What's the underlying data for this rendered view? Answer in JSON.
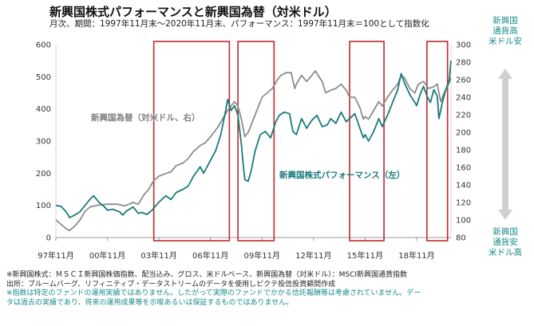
{
  "title": "新興国株式パフォーマンスと新興国為替（対米ドル）",
  "subtitle": "月次、期間：1997年11月末〜2020年11月末、パフォーマンス：1997年11月末＝100として指数化",
  "right_top_label": [
    "新興国",
    "通貨高",
    "米ドル安"
  ],
  "right_bottom_label": [
    "新興国",
    "通貨安",
    "米ドル高"
  ],
  "notes": {
    "line1": "※新興国株式：ＭＳＣＩ新興国株価指数、配当込み、グロス、米ドルベース、新興国為替（対米ドル）：MSCI新興国通貨指数",
    "line2": "出所：ブルームバーグ、リフィニティブ・データストリームのデータを使用しピクテ投信投資顧問作成",
    "line3": "※指数は特定のファンドの運用実績ではありません。したがって実際のファンドでかかる信託報酬等は考慮されていません。デー",
    "line4": "タは過去の実績であり、将来の運用成果等を示唆あるいは保証するものではありません。"
  },
  "colors": {
    "equity": "#1a7a7a",
    "fx": "#8c8c8c",
    "highlight": "#c0282d",
    "arrow": "#d0d0d0",
    "accent": "#1a8a8a"
  },
  "chart_data": {
    "type": "line",
    "x_tick_labels": [
      "97年11月",
      "00年11月",
      "03年11月",
      "06年11月",
      "09年11月",
      "12年11月",
      "15年11月",
      "18年11月"
    ],
    "x_range": [
      1997.9,
      2020.9
    ],
    "y_left": {
      "ylim": [
        0,
        600
      ],
      "ticks": [
        0,
        100,
        200,
        300,
        400,
        500,
        600
      ]
    },
    "y_right": {
      "ylim": [
        80,
        300
      ],
      "ticks": [
        80,
        100,
        120,
        140,
        160,
        180,
        200,
        220,
        240,
        260,
        280,
        300
      ]
    },
    "highlight_periods": [
      [
        2003.6,
        2008.0
      ],
      [
        2008.5,
        2010.6
      ],
      [
        2015.0,
        2017.0
      ],
      [
        2019.5,
        2020.7
      ]
    ],
    "series": [
      {
        "name": "新興国株式パフォーマンス（左）",
        "axis": "left",
        "points": [
          [
            1997.9,
            100
          ],
          [
            1998.2,
            97
          ],
          [
            1998.5,
            80
          ],
          [
            1998.7,
            62
          ],
          [
            1999.0,
            70
          ],
          [
            1999.3,
            80
          ],
          [
            1999.6,
            100
          ],
          [
            1999.9,
            120
          ],
          [
            2000.1,
            130
          ],
          [
            2000.4,
            110
          ],
          [
            2000.7,
            97
          ],
          [
            2000.9,
            85
          ],
          [
            2001.2,
            88
          ],
          [
            2001.6,
            80
          ],
          [
            2001.8,
            70
          ],
          [
            2002.0,
            82
          ],
          [
            2002.4,
            95
          ],
          [
            2002.7,
            75
          ],
          [
            2002.9,
            78
          ],
          [
            2003.2,
            72
          ],
          [
            2003.5,
            85
          ],
          [
            2003.9,
            110
          ],
          [
            2004.3,
            130
          ],
          [
            2004.6,
            118
          ],
          [
            2004.9,
            140
          ],
          [
            2005.3,
            150
          ],
          [
            2005.6,
            160
          ],
          [
            2005.9,
            190
          ],
          [
            2006.3,
            220
          ],
          [
            2006.5,
            200
          ],
          [
            2006.9,
            240
          ],
          [
            2007.2,
            270
          ],
          [
            2007.5,
            320
          ],
          [
            2007.8,
            400
          ],
          [
            2007.9,
            430
          ],
          [
            2008.1,
            395
          ],
          [
            2008.3,
            410
          ],
          [
            2008.5,
            380
          ],
          [
            2008.7,
            290
          ],
          [
            2008.8,
            230
          ],
          [
            2008.9,
            180
          ],
          [
            2009.1,
            175
          ],
          [
            2009.3,
            215
          ],
          [
            2009.5,
            270
          ],
          [
            2009.8,
            320
          ],
          [
            2010.1,
            330
          ],
          [
            2010.4,
            310
          ],
          [
            2010.7,
            360
          ],
          [
            2010.9,
            380
          ],
          [
            2011.2,
            390
          ],
          [
            2011.5,
            385
          ],
          [
            2011.7,
            330
          ],
          [
            2011.9,
            320
          ],
          [
            2012.2,
            370
          ],
          [
            2012.5,
            340
          ],
          [
            2012.8,
            365
          ],
          [
            2013.1,
            380
          ],
          [
            2013.4,
            345
          ],
          [
            2013.7,
            350
          ],
          [
            2013.9,
            370
          ],
          [
            2014.2,
            355
          ],
          [
            2014.5,
            390
          ],
          [
            2014.8,
            360
          ],
          [
            2015.0,
            370
          ],
          [
            2015.3,
            385
          ],
          [
            2015.6,
            340
          ],
          [
            2015.8,
            310
          ],
          [
            2015.9,
            320
          ],
          [
            2016.1,
            300
          ],
          [
            2016.4,
            330
          ],
          [
            2016.7,
            370
          ],
          [
            2016.9,
            345
          ],
          [
            2017.2,
            380
          ],
          [
            2017.5,
            420
          ],
          [
            2017.8,
            460
          ],
          [
            2018.0,
            510
          ],
          [
            2018.2,
            480
          ],
          [
            2018.5,
            445
          ],
          [
            2018.8,
            420
          ],
          [
            2018.9,
            410
          ],
          [
            2019.1,
            445
          ],
          [
            2019.3,
            470
          ],
          [
            2019.5,
            440
          ],
          [
            2019.7,
            420
          ],
          [
            2019.9,
            460
          ],
          [
            2020.1,
            440
          ],
          [
            2020.2,
            370
          ],
          [
            2020.4,
            420
          ],
          [
            2020.6,
            460
          ],
          [
            2020.8,
            490
          ],
          [
            2020.9,
            550
          ]
        ]
      },
      {
        "name": "新興国為替（対米ドル、右）",
        "axis": "right",
        "points": [
          [
            1997.9,
            100
          ],
          [
            1998.2,
            95
          ],
          [
            1998.5,
            90
          ],
          [
            1998.7,
            88
          ],
          [
            1999.0,
            93
          ],
          [
            1999.3,
            100
          ],
          [
            1999.6,
            110
          ],
          [
            1999.9,
            115
          ],
          [
            2000.4,
            117
          ],
          [
            2000.9,
            118
          ],
          [
            2001.5,
            118
          ],
          [
            2001.9,
            116
          ],
          [
            2002.4,
            120
          ],
          [
            2002.7,
            118
          ],
          [
            2003.0,
            128
          ],
          [
            2003.3,
            135
          ],
          [
            2003.6,
            145
          ],
          [
            2003.9,
            150
          ],
          [
            2004.3,
            153
          ],
          [
            2004.6,
            155
          ],
          [
            2004.9,
            162
          ],
          [
            2005.3,
            165
          ],
          [
            2005.6,
            170
          ],
          [
            2005.9,
            178
          ],
          [
            2006.3,
            185
          ],
          [
            2006.6,
            188
          ],
          [
            2006.9,
            195
          ],
          [
            2007.3,
            205
          ],
          [
            2007.6,
            215
          ],
          [
            2007.9,
            225
          ],
          [
            2008.1,
            230
          ],
          [
            2008.3,
            235
          ],
          [
            2008.5,
            230
          ],
          [
            2008.7,
            215
          ],
          [
            2008.9,
            195
          ],
          [
            2009.1,
            200
          ],
          [
            2009.4,
            215
          ],
          [
            2009.7,
            230
          ],
          [
            2009.9,
            240
          ],
          [
            2010.2,
            245
          ],
          [
            2010.5,
            250
          ],
          [
            2010.8,
            260
          ],
          [
            2011.0,
            265
          ],
          [
            2011.3,
            268
          ],
          [
            2011.6,
            268
          ],
          [
            2011.8,
            250
          ],
          [
            2011.9,
            255
          ],
          [
            2012.2,
            265
          ],
          [
            2012.5,
            258
          ],
          [
            2012.8,
            265
          ],
          [
            2013.0,
            270
          ],
          [
            2013.4,
            258
          ],
          [
            2013.6,
            245
          ],
          [
            2013.9,
            248
          ],
          [
            2014.2,
            250
          ],
          [
            2014.5,
            255
          ],
          [
            2014.8,
            248
          ],
          [
            2015.0,
            240
          ],
          [
            2015.3,
            240
          ],
          [
            2015.6,
            228
          ],
          [
            2015.8,
            215
          ],
          [
            2015.9,
            218
          ],
          [
            2016.1,
            215
          ],
          [
            2016.4,
            225
          ],
          [
            2016.7,
            235
          ],
          [
            2016.9,
            230
          ],
          [
            2017.2,
            240
          ],
          [
            2017.5,
            248
          ],
          [
            2017.8,
            255
          ],
          [
            2018.0,
            265
          ],
          [
            2018.2,
            262
          ],
          [
            2018.5,
            250
          ],
          [
            2018.8,
            245
          ],
          [
            2019.0,
            255
          ],
          [
            2019.3,
            258
          ],
          [
            2019.6,
            250
          ],
          [
            2019.9,
            252
          ],
          [
            2020.1,
            255
          ],
          [
            2020.3,
            235
          ],
          [
            2020.5,
            245
          ],
          [
            2020.7,
            252
          ],
          [
            2020.9,
            262
          ]
        ]
      }
    ],
    "annotations": [
      {
        "text": "新興国為替（対米ドル、右）",
        "series": "fx"
      },
      {
        "text": "新興国株式パフォーマンス（左）",
        "series": "equity"
      }
    ]
  }
}
